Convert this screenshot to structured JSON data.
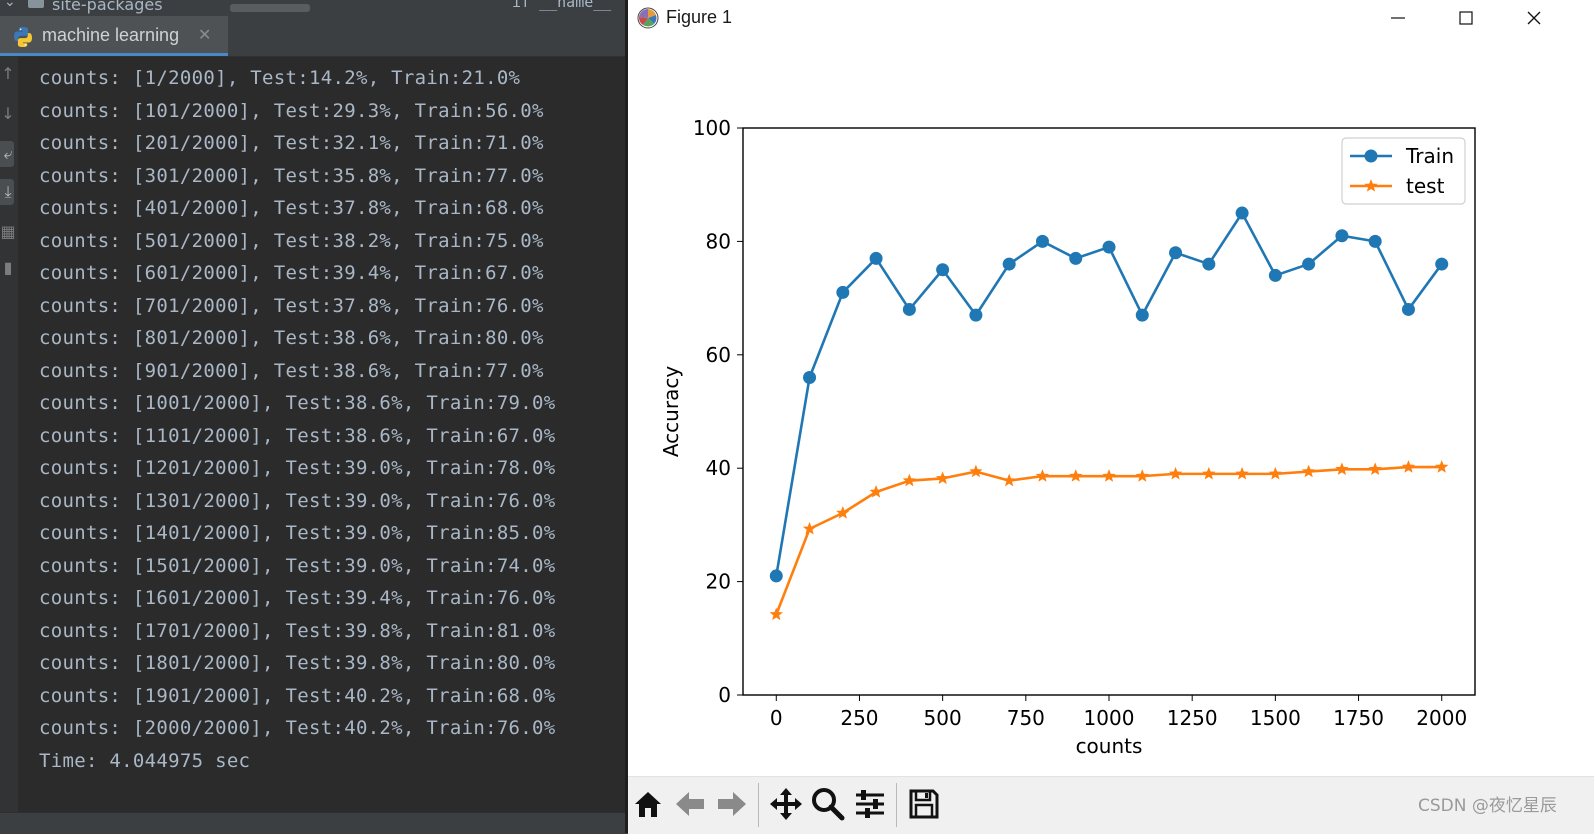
{
  "ide": {
    "project_item": "site-packages",
    "editor_fragment": "if __name__ == ",
    "run_tab_label": "machine learning",
    "console_lines": [
      "counts: [1/2000], Test:14.2%, Train:21.0%",
      "counts: [101/2000], Test:29.3%, Train:56.0%",
      "counts: [201/2000], Test:32.1%, Train:71.0%",
      "counts: [301/2000], Test:35.8%, Train:77.0%",
      "counts: [401/2000], Test:37.8%, Train:68.0%",
      "counts: [501/2000], Test:38.2%, Train:75.0%",
      "counts: [601/2000], Test:39.4%, Train:67.0%",
      "counts: [701/2000], Test:37.8%, Train:76.0%",
      "counts: [801/2000], Test:38.6%, Train:80.0%",
      "counts: [901/2000], Test:38.6%, Train:77.0%",
      "counts: [1001/2000], Test:38.6%, Train:79.0%",
      "counts: [1101/2000], Test:38.6%, Train:67.0%",
      "counts: [1201/2000], Test:39.0%, Train:78.0%",
      "counts: [1301/2000], Test:39.0%, Train:76.0%",
      "counts: [1401/2000], Test:39.0%, Train:85.0%",
      "counts: [1501/2000], Test:39.0%, Train:74.0%",
      "counts: [1601/2000], Test:39.4%, Train:76.0%",
      "counts: [1701/2000], Test:39.8%, Train:81.0%",
      "counts: [1801/2000], Test:39.8%, Train:80.0%",
      "counts: [1901/2000], Test:40.2%, Train:68.0%",
      "counts: [2000/2000], Test:40.2%, Train:76.0%",
      "Time: 4.044975 sec"
    ]
  },
  "figure": {
    "window_title": "Figure 1",
    "window_icon": "matplotlib-icon",
    "controls": [
      "minimize-icon",
      "maximize-icon",
      "close-icon"
    ],
    "toolbar_icons": [
      "home-icon",
      "back-arrow-icon",
      "forward-arrow-icon",
      "pan-icon",
      "zoom-icon",
      "configure-subplots-icon",
      "save-icon"
    ],
    "watermark": "CSDN @夜忆星辰"
  },
  "colors": {
    "console_bg": "#2b2b2b",
    "console_text": "#a9b7c6",
    "train": "#1f77b4",
    "test": "#ff7f0e"
  },
  "chart_data": {
    "type": "line",
    "title": "",
    "xlabel": "counts",
    "ylabel": "Accuracy",
    "xlim": [
      -100,
      2100
    ],
    "ylim": [
      0,
      100
    ],
    "xticks": [
      0,
      250,
      500,
      750,
      1000,
      1250,
      1500,
      1750,
      2000
    ],
    "yticks": [
      0,
      20,
      40,
      60,
      80,
      100
    ],
    "legend_position": "top-right",
    "grid": false,
    "x": [
      0,
      100,
      200,
      300,
      400,
      500,
      600,
      700,
      800,
      900,
      1000,
      1100,
      1200,
      1300,
      1400,
      1500,
      1600,
      1700,
      1800,
      1900,
      2000
    ],
    "series": [
      {
        "name": "Train",
        "marker": "circle",
        "color": "#1f77b4",
        "values": [
          21,
          56,
          71,
          77,
          68,
          75,
          67,
          76,
          80,
          77,
          79,
          67,
          78,
          76,
          85,
          74,
          76,
          81,
          80,
          68,
          76
        ]
      },
      {
        "name": "test",
        "marker": "star",
        "color": "#ff7f0e",
        "values": [
          14.2,
          29.3,
          32.1,
          35.8,
          37.8,
          38.2,
          39.4,
          37.8,
          38.6,
          38.6,
          38.6,
          38.6,
          39.0,
          39.0,
          39.0,
          39.0,
          39.4,
          39.8,
          39.8,
          40.2,
          40.2
        ]
      }
    ]
  }
}
